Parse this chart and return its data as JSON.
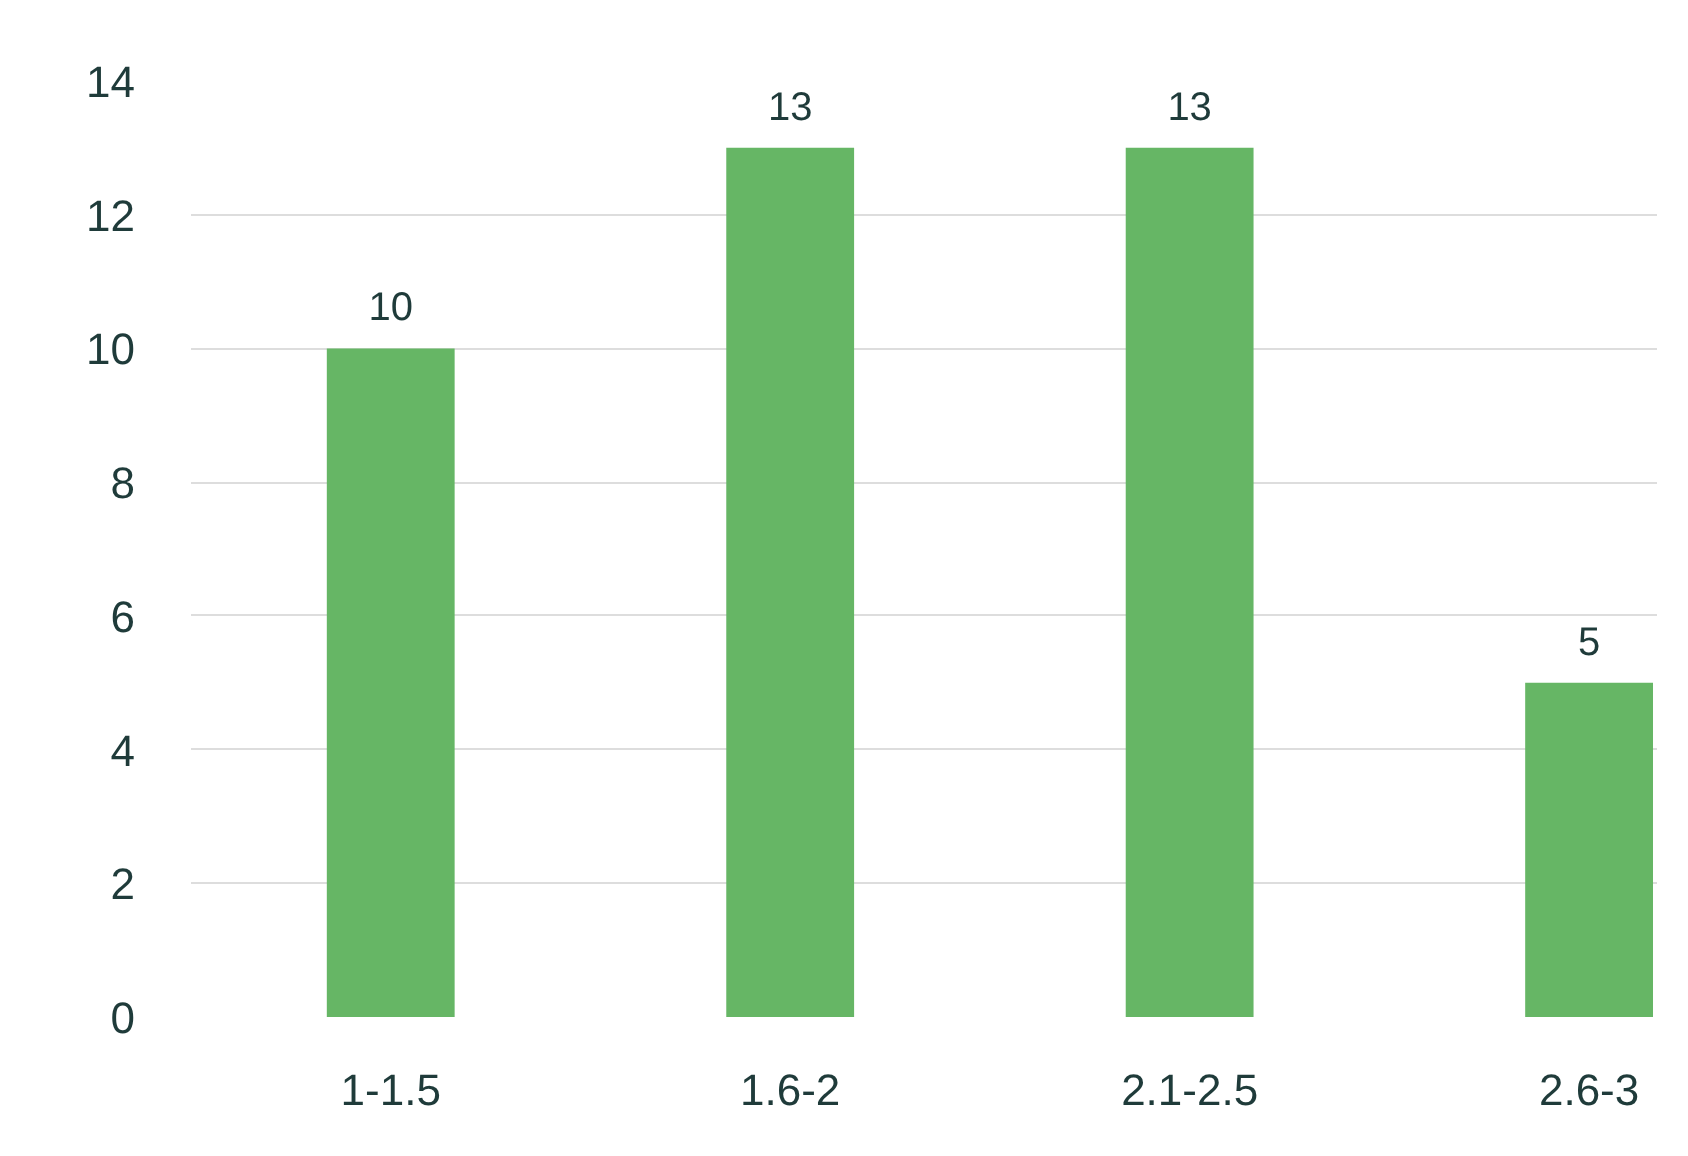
{
  "chart_data": {
    "type": "bar",
    "categories": [
      "1-1.5",
      "1.6-2",
      "2.1-2.5",
      "2.6-3"
    ],
    "values": [
      10,
      13,
      13,
      5
    ],
    "color": "#66b665",
    "ylim": [
      0,
      14
    ],
    "yticks": [
      0,
      2,
      4,
      6,
      8,
      10,
      12,
      14
    ],
    "grid": "y",
    "data_labels": true
  }
}
